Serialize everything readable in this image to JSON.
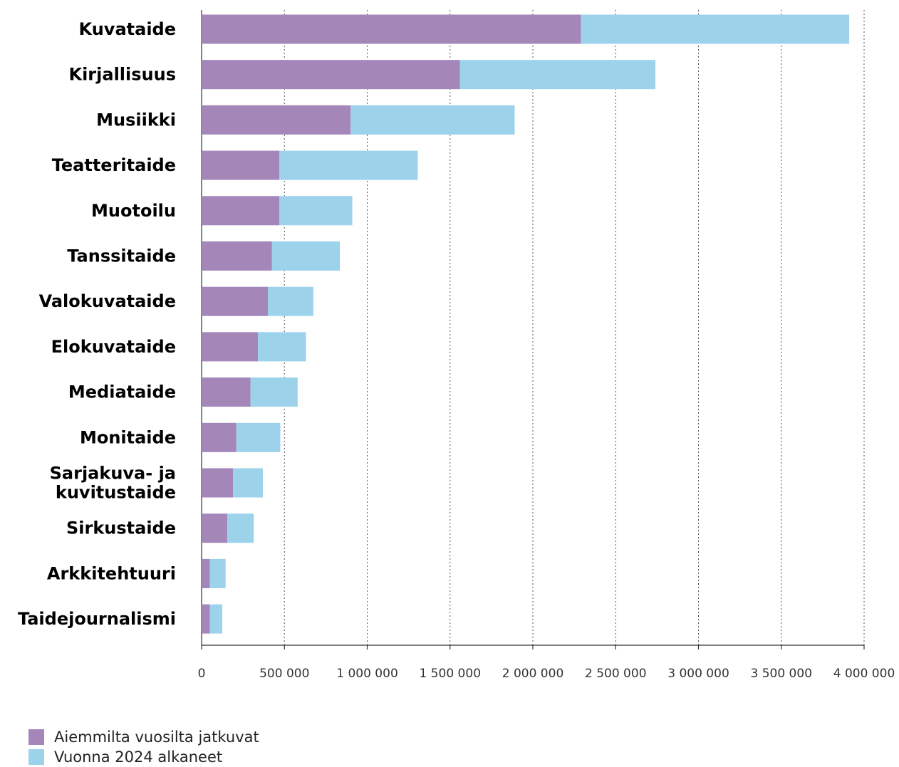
{
  "chart_data": {
    "type": "bar",
    "orientation": "horizontal",
    "stacked": true,
    "categories": [
      "Kuvataide",
      "Kirjallisuus",
      "Musiikki",
      "Teatteritaide",
      "Muotoilu",
      "Tanssitaide",
      "Valokuvataide",
      "Elokuvataide",
      "Mediataide",
      "Monitaide",
      "Sarjakuva- ja kuvitustaide",
      "Sirkustaide",
      "Arkkitehtuuri",
      "Taidejournalismi"
    ],
    "series": [
      {
        "name": "Aiemmilta vuosilta jatkuvat",
        "color": "#a586b9",
        "values": [
          2290000,
          1560000,
          900000,
          470000,
          470000,
          425000,
          400000,
          340000,
          295000,
          210000,
          190000,
          155000,
          50000,
          50000
        ]
      },
      {
        "name": "Vuonna 2024 alkaneet",
        "color": "#9cd3eb",
        "values": [
          1620000,
          1180000,
          990000,
          835000,
          440000,
          410000,
          275000,
          290000,
          285000,
          265000,
          180000,
          160000,
          95000,
          75000
        ]
      }
    ],
    "x_ticks": [
      "0",
      "500 000",
      "1 000 000",
      "1 500 000",
      "2 000 000",
      "2 500 000",
      "3 000 000",
      "3 500 000",
      "4 000 000"
    ],
    "xlim": [
      0,
      4000000
    ],
    "grid": "vertical dotted",
    "legend_position": "bottom-left"
  }
}
